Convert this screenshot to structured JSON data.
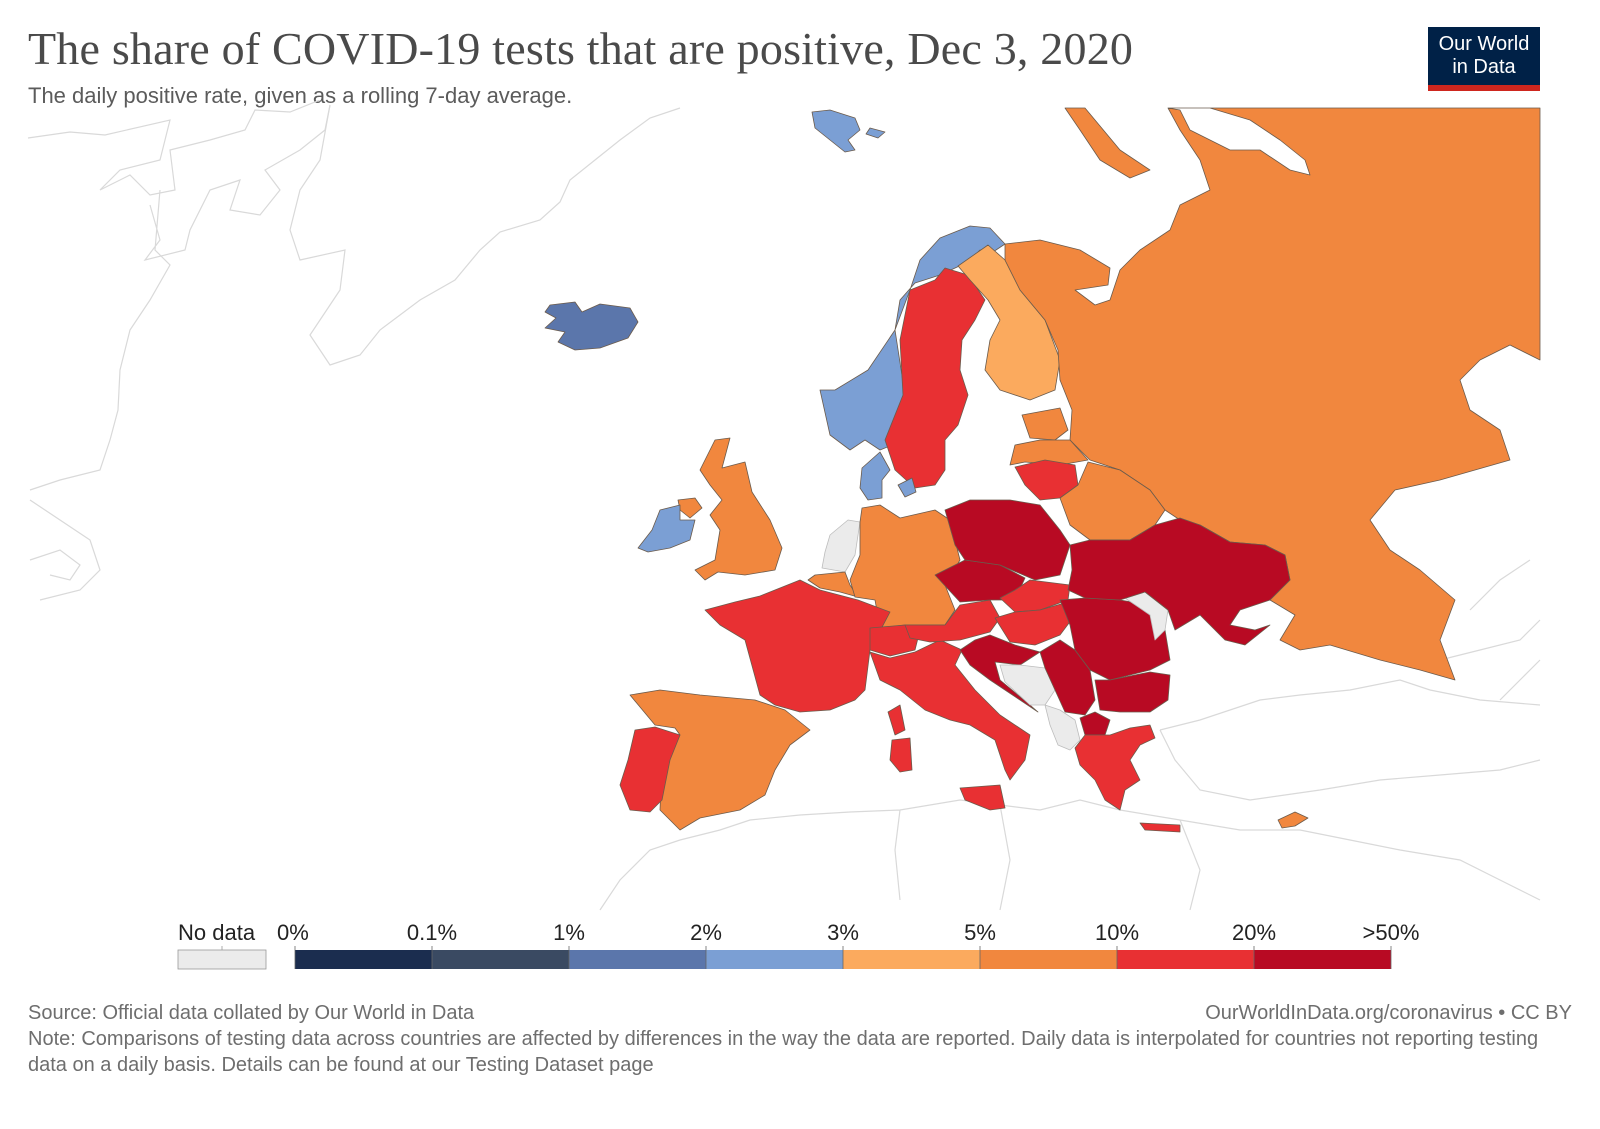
{
  "header": {
    "title": "The share of COVID-19 tests that are positive, Dec 3, 2020",
    "subtitle": "The daily positive rate, given as a rolling 7-day average.",
    "logo_line1": "Our World",
    "logo_line2": "in Data"
  },
  "colors": {
    "no_data": "#ebebeb",
    "bins": [
      "#1b2d4f",
      "#3a4a62",
      "#5b76ab",
      "#7b9fd4",
      "#fbaa5e",
      "#f1873e",
      "#e83033",
      "#b80a23"
    ],
    "outline_context": "#d9d9d9",
    "logo_bg": "#002147",
    "logo_bar": "#ce261e"
  },
  "legend": {
    "no_data_label": "No data",
    "ticks": [
      "0%",
      "0.1%",
      "1%",
      "2%",
      "3%",
      "5%",
      "10%",
      "20%",
      ">50%"
    ]
  },
  "chart_data": {
    "type": "choropleth",
    "title": "The share of COVID-19 tests that are positive, Dec 3, 2020",
    "subtitle": "The daily positive rate, given as a rolling 7-day average.",
    "region": "Europe",
    "bins": [
      {
        "range": "0%–0.1%",
        "color": "#1b2d4f"
      },
      {
        "range": "0.1%–1%",
        "color": "#3a4a62"
      },
      {
        "range": "1%–2%",
        "color": "#5b76ab"
      },
      {
        "range": "2%–3%",
        "color": "#7b9fd4"
      },
      {
        "range": "3%–5%",
        "color": "#fbaa5e"
      },
      {
        "range": "5%–10%",
        "color": "#f1873e"
      },
      {
        "range": "10%–20%",
        "color": "#e83033"
      },
      {
        "range": "20%–>50%",
        "color": "#b80a23"
      }
    ],
    "countries": [
      {
        "name": "Iceland",
        "bin": "1%–2%"
      },
      {
        "name": "Norway",
        "bin": "2%–3%"
      },
      {
        "name": "Svalbard",
        "bin": "2%–3%"
      },
      {
        "name": "Denmark",
        "bin": "2%–3%"
      },
      {
        "name": "Ireland",
        "bin": "2%–3%"
      },
      {
        "name": "Sweden",
        "bin": "10%–20%"
      },
      {
        "name": "Finland",
        "bin": "3%–5%"
      },
      {
        "name": "Russia",
        "bin": "5%–10%"
      },
      {
        "name": "United Kingdom",
        "bin": "5%–10%"
      },
      {
        "name": "Germany",
        "bin": "5%–10%"
      },
      {
        "name": "Belgium",
        "bin": "5%–10%"
      },
      {
        "name": "Spain",
        "bin": "5%–10%"
      },
      {
        "name": "Estonia",
        "bin": "5%–10%"
      },
      {
        "name": "Latvia",
        "bin": "5%–10%"
      },
      {
        "name": "Belarus",
        "bin": "5%–10%"
      },
      {
        "name": "Cyprus",
        "bin": "5%–10%"
      },
      {
        "name": "France",
        "bin": "10%–20%"
      },
      {
        "name": "Portugal",
        "bin": "10%–20%"
      },
      {
        "name": "Italy",
        "bin": "10%–20%"
      },
      {
        "name": "Switzerland",
        "bin": "10%–20%"
      },
      {
        "name": "Austria",
        "bin": "10%–20%"
      },
      {
        "name": "Slovakia",
        "bin": "10%–20%"
      },
      {
        "name": "Hungary",
        "bin": "10%–20%"
      },
      {
        "name": "Lithuania",
        "bin": "10%–20%"
      },
      {
        "name": "Greece",
        "bin": "10%–20%"
      },
      {
        "name": "Poland",
        "bin": "20%–>50%"
      },
      {
        "name": "Czechia",
        "bin": "20%–>50%"
      },
      {
        "name": "Ukraine",
        "bin": "20%–>50%"
      },
      {
        "name": "Romania",
        "bin": "20%–>50%"
      },
      {
        "name": "Bulgaria",
        "bin": "20%–>50%"
      },
      {
        "name": "Serbia",
        "bin": "20%–>50%"
      },
      {
        "name": "Croatia",
        "bin": "20%–>50%"
      },
      {
        "name": "Slovenia",
        "bin": "20%–>50%"
      },
      {
        "name": "North Macedonia",
        "bin": "20%–>50%"
      },
      {
        "name": "Netherlands",
        "bin": "No data"
      },
      {
        "name": "Bosnia and Herzegovina",
        "bin": "No data"
      },
      {
        "name": "Montenegro",
        "bin": "No data"
      },
      {
        "name": "Albania",
        "bin": "No data"
      },
      {
        "name": "Kosovo",
        "bin": "No data"
      },
      {
        "name": "Moldova",
        "bin": "No data"
      }
    ]
  },
  "footer": {
    "source": "Source: Official data collated by Our World in Data",
    "credit": "OurWorldInData.org/coronavirus • CC BY",
    "note": "Note: Comparisons of testing data across countries are affected by differences in the way the data are reported. Daily data is interpolated for countries not reporting testing data on a daily basis. Details can be found at our Testing Dataset page"
  }
}
